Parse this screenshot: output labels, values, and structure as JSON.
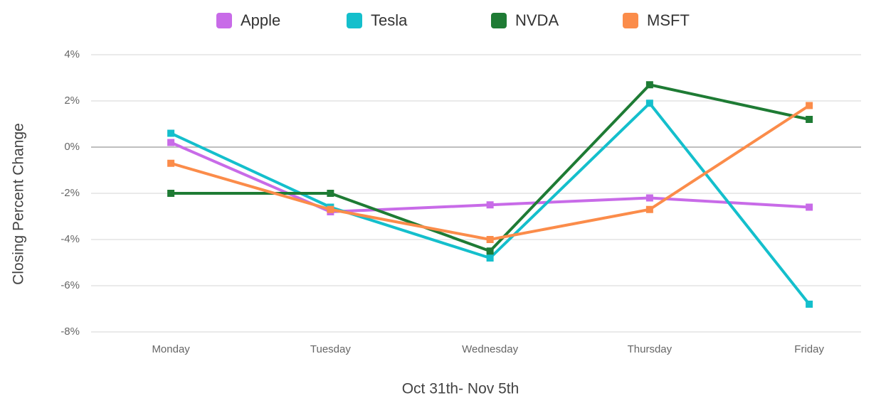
{
  "chart_data": {
    "type": "line",
    "xlabel": "Oct 31th- Nov 5th",
    "ylabel": "Closing Percent Change",
    "categories": [
      "Monday",
      "Tuesday",
      "Wednesday",
      "Thursday",
      "Friday"
    ],
    "series": [
      {
        "name": "Apple",
        "color": "#c86be8",
        "values": [
          0.2,
          -2.8,
          -2.5,
          -2.2,
          -2.6
        ]
      },
      {
        "name": "Tesla",
        "color": "#14bfcc",
        "values": [
          0.6,
          -2.6,
          -4.8,
          1.9,
          -6.8
        ]
      },
      {
        "name": "NVDA",
        "color": "#1e7b34",
        "values": [
          -2.0,
          -2.0,
          -4.5,
          2.7,
          1.2
        ]
      },
      {
        "name": "MSFT",
        "color": "#fb8c4a",
        "values": [
          -0.7,
          -2.7,
          -4.0,
          -2.7,
          1.8
        ]
      }
    ],
    "ylim": [
      -8,
      4
    ],
    "yticks": [
      {
        "value": -8,
        "label": "-8%"
      },
      {
        "value": -6,
        "label": "-6%"
      },
      {
        "value": -4,
        "label": "-4%"
      },
      {
        "value": -2,
        "label": "-2%"
      },
      {
        "value": 0,
        "label": "0%"
      },
      {
        "value": 2,
        "label": "2%"
      },
      {
        "value": 4,
        "label": "4%"
      }
    ],
    "grid": true,
    "legend": "top"
  }
}
